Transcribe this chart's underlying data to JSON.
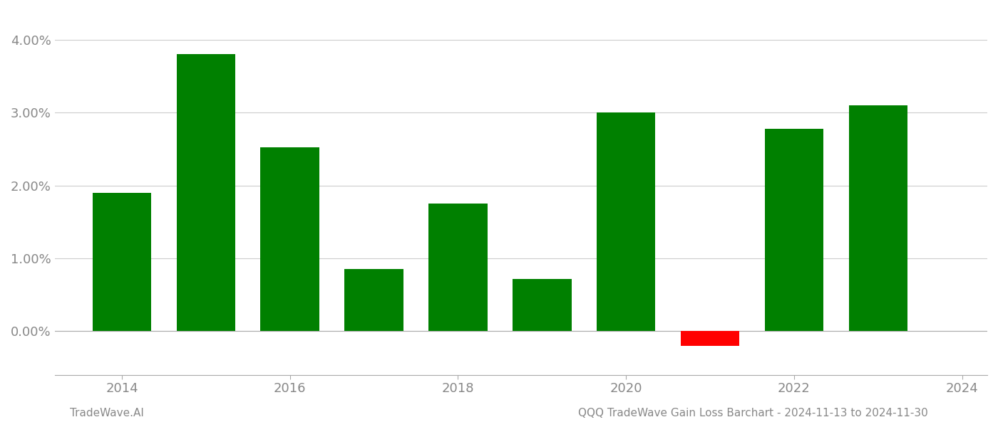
{
  "years": [
    2014,
    2015,
    2016,
    2017,
    2018,
    2019,
    2020,
    2021,
    2022,
    2023
  ],
  "values": [
    0.019,
    0.038,
    0.0252,
    0.0085,
    0.0175,
    0.0072,
    0.03,
    -0.002,
    0.0278,
    0.031
  ],
  "bar_color_positive": "#008000",
  "bar_color_negative": "#ff0000",
  "ylim_min": -0.006,
  "ylim_max": 0.044,
  "yticks": [
    0.0,
    0.01,
    0.02,
    0.03,
    0.04
  ],
  "ytick_labels": [
    "0.00%",
    "1.00%",
    "2.00%",
    "3.00%",
    "4.00%"
  ],
  "xticks": [
    2014,
    2016,
    2018,
    2020,
    2022,
    2024
  ],
  "xtick_labels": [
    "2014",
    "2016",
    "2018",
    "2020",
    "2022",
    "2024"
  ],
  "xlim_min": 2013.2,
  "xlim_max": 2024.3,
  "grid_color": "#cccccc",
  "background_color": "#ffffff",
  "footer_left": "TradeWave.AI",
  "footer_right": "QQQ TradeWave Gain Loss Barchart - 2024-11-13 to 2024-11-30",
  "footer_color": "#888888",
  "bar_width": 0.7,
  "tick_label_color": "#888888",
  "tick_label_size": 13,
  "footer_fontsize": 11
}
